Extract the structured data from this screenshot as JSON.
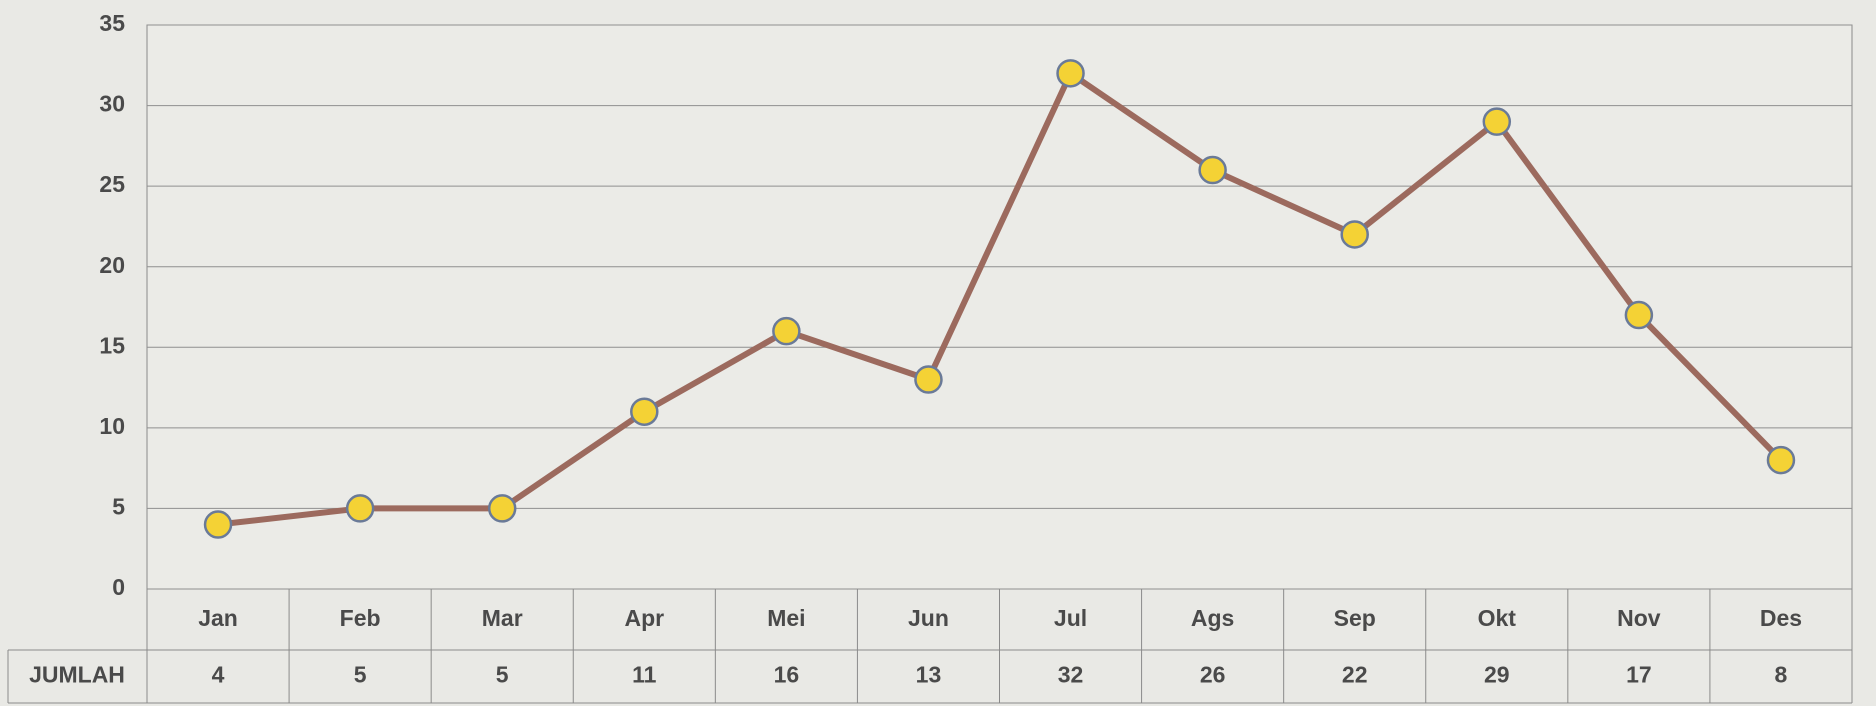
{
  "chart_data": {
    "type": "line",
    "categories": [
      "Jan",
      "Feb",
      "Mar",
      "Apr",
      "Mei",
      "Jun",
      "Jul",
      "Ags",
      "Sep",
      "Okt",
      "Nov",
      "Des"
    ],
    "series": [
      {
        "name": "JUMLAH",
        "color": "#9c6a5e",
        "marker_color": "#f4d235",
        "values": [
          4,
          5,
          5,
          11,
          16,
          13,
          32,
          26,
          22,
          29,
          17,
          8
        ]
      }
    ],
    "ylim": [
      0,
      35
    ],
    "yticks": [
      0,
      5,
      10,
      15,
      20,
      25,
      30,
      35
    ],
    "grid": true,
    "data_table": true
  }
}
